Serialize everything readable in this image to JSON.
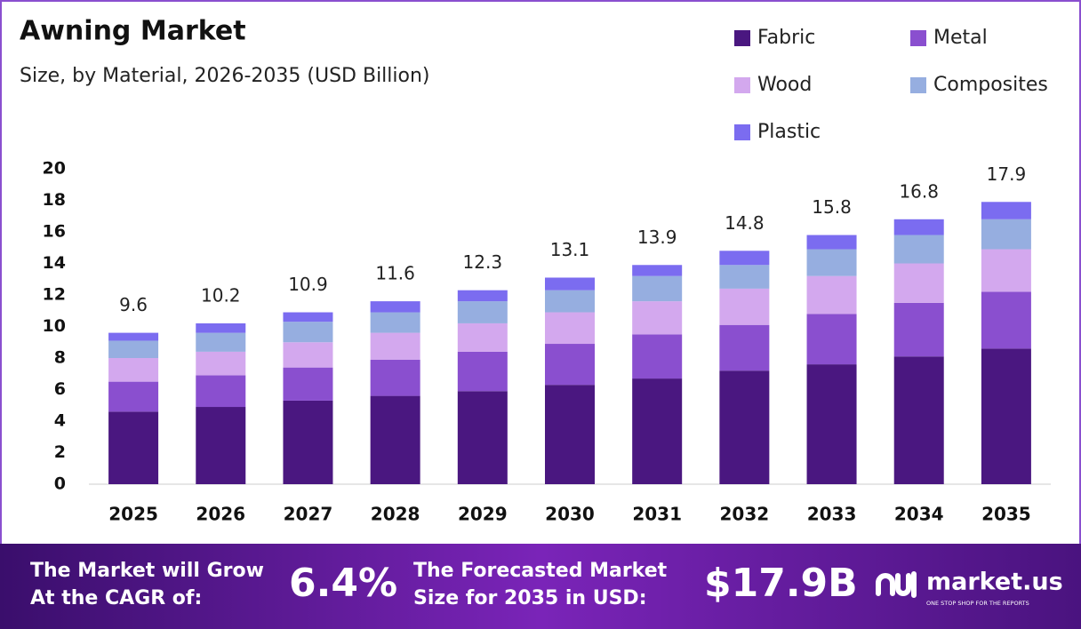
{
  "chart_data": {
    "type": "stacked_bar",
    "title": "Awning Market",
    "subtitle": "Size, by Material, 2026-2035 (USD Billion)",
    "categories": [
      "2025",
      "2026",
      "2027",
      "2028",
      "2029",
      "2030",
      "2031",
      "2032",
      "2033",
      "2034",
      "2035"
    ],
    "series": [
      {
        "name": "Fabric",
        "color": "#4a1780",
        "values": [
          4.6,
          4.9,
          5.3,
          5.6,
          5.9,
          6.3,
          6.7,
          7.2,
          7.6,
          8.1,
          8.6
        ]
      },
      {
        "name": "Metal",
        "color": "#8a4fcf",
        "values": [
          1.9,
          2.0,
          2.1,
          2.3,
          2.5,
          2.6,
          2.8,
          2.9,
          3.2,
          3.4,
          3.6
        ]
      },
      {
        "name": "Wood",
        "color": "#d3a8ee",
        "values": [
          1.5,
          1.5,
          1.6,
          1.7,
          1.8,
          2.0,
          2.1,
          2.3,
          2.4,
          2.5,
          2.7
        ]
      },
      {
        "name": "Composites",
        "color": "#96aee0",
        "values": [
          1.1,
          1.2,
          1.3,
          1.3,
          1.4,
          1.4,
          1.6,
          1.5,
          1.7,
          1.8,
          1.9
        ]
      },
      {
        "name": "Plastic",
        "color": "#7b6cf0",
        "values": [
          0.5,
          0.6,
          0.6,
          0.7,
          0.7,
          0.8,
          0.7,
          0.9,
          0.9,
          1.0,
          1.1
        ]
      }
    ],
    "totals": [
      9.6,
      10.2,
      10.9,
      11.6,
      12.3,
      13.1,
      13.9,
      14.8,
      15.8,
      16.8,
      17.9
    ],
    "ylim": [
      0,
      20
    ],
    "yticks": [
      0,
      2,
      4,
      6,
      8,
      10,
      12,
      14,
      16,
      18,
      20
    ],
    "grid": false,
    "legend": "top-right"
  },
  "footer": {
    "cagr_text": [
      "The Market will Grow",
      "At the CAGR of:"
    ],
    "cagr": "6.4%",
    "forecast_text": [
      "The Forecasted Market",
      "Size for 2035 in USD:"
    ],
    "forecast": "$17.9B",
    "brand": "market.us",
    "tagline": "ONE STOP SHOP FOR THE REPORTS"
  }
}
